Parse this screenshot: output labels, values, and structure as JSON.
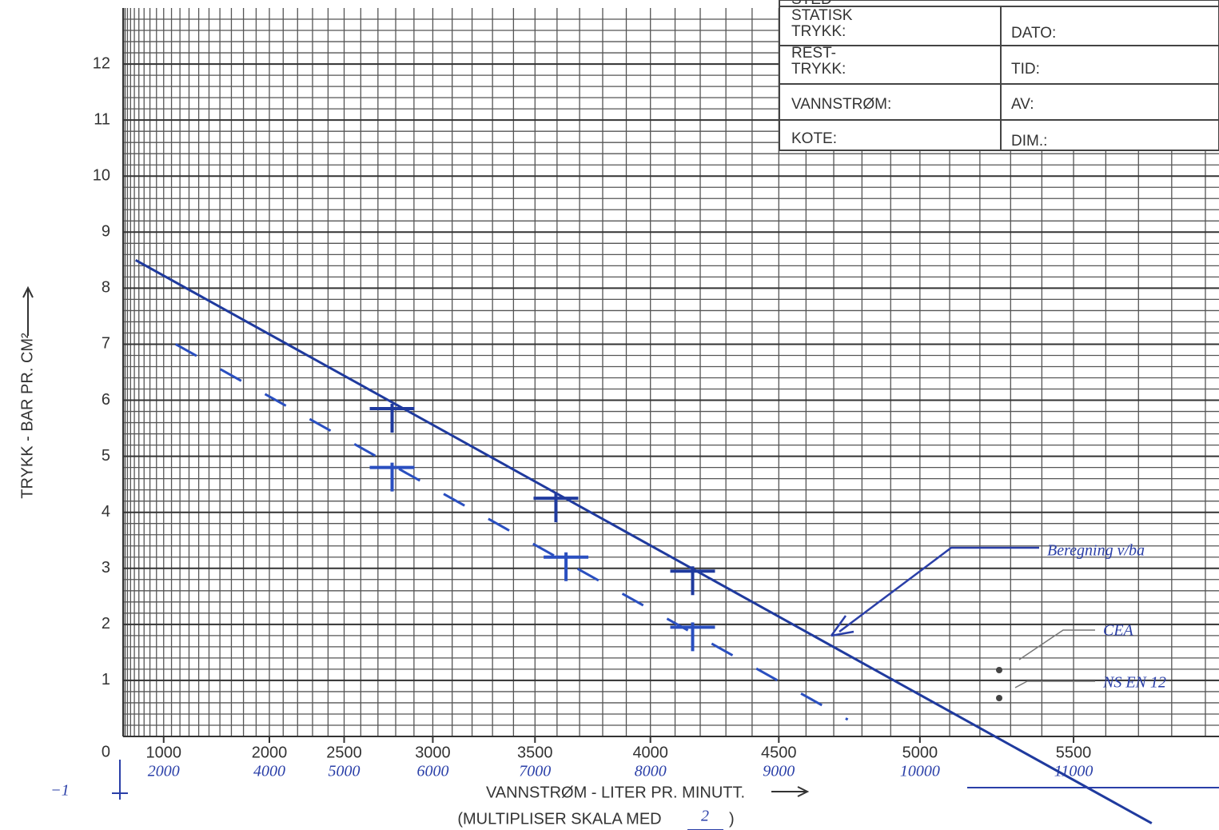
{
  "chart_data": {
    "type": "line",
    "y_label": "TRYKK - BAR PR. CM²",
    "x_label": "VANNSTRØM - LITER PR. MINUTT.",
    "x_note": [
      "(MULTIPLISER SKALA MED",
      "2",
      ")"
    ],
    "x_exponent": 1.85,
    "xlim": [
      0,
      5940
    ],
    "xticks": [
      1000,
      2000,
      2500,
      3000,
      3500,
      4000,
      4500,
      5000,
      5500
    ],
    "x_labels_2": [
      "2000",
      "4000",
      "5000",
      "6000",
      "7000",
      "8000",
      "9000",
      "10000",
      "11000"
    ],
    "ylim": [
      0,
      13
    ],
    "yticks": [
      0,
      1,
      2,
      3,
      4,
      5,
      6,
      7,
      8,
      9,
      10,
      11,
      12
    ],
    "grid": true,
    "series": [
      {
        "color": "#1f3a9e",
        "dashed": false,
        "x": [
          530,
          5740
        ],
        "values": [
          8.5,
          -1.55
        ]
      },
      {
        "color": "#2a4fc0",
        "dashed": true,
        "x": [
          1150,
          4750
        ],
        "values": [
          7.0,
          0.3
        ]
      }
    ],
    "points": [
      {
        "color": "#1f3a9e",
        "x": [
          2780,
          3595,
          4170
        ],
        "values": [
          5.85,
          4.25,
          2.95
        ]
      },
      {
        "color": "#2a4fc0",
        "x": [
          2780,
          3640,
          4170
        ],
        "values": [
          4.8,
          3.2,
          1.95
        ]
      }
    ]
  },
  "form": {
    "sted": "STED",
    "statisk_trykk": [
      "STATISK",
      "TRYKK:"
    ],
    "dato": "DATO:",
    "rest_trykk": [
      "REST-",
      "TRYKK:"
    ],
    "tid": "TID:",
    "vannstrom": "VANNSTRØM:",
    "av": "AV:",
    "kote": "KOTE:",
    "dim": "DIM.:"
  },
  "annotations": {
    "minus_one": "−1",
    "beregning": "Beregning v/ba",
    "cea": "CEA",
    "ns_en": "NS EN 12"
  }
}
